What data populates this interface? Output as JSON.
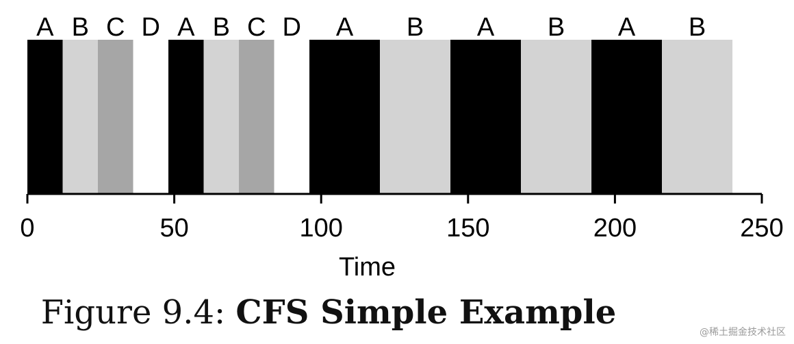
{
  "chart_data": {
    "type": "bar",
    "xlabel": "Time",
    "ylabel": "",
    "xlim": [
      0,
      250
    ],
    "xticks": [
      0,
      50,
      100,
      150,
      200,
      250
    ],
    "grid": false,
    "series": [
      {
        "name": "A",
        "color": "#000000"
      },
      {
        "name": "B",
        "color": "#d3d3d3"
      },
      {
        "name": "C",
        "color": "#a6a6a6"
      },
      {
        "name": "D",
        "color": "#ffffff"
      }
    ],
    "segments": [
      {
        "label": "A",
        "start": 0,
        "end": 12
      },
      {
        "label": "B",
        "start": 12,
        "end": 24
      },
      {
        "label": "C",
        "start": 24,
        "end": 36
      },
      {
        "label": "D",
        "start": 36,
        "end": 48
      },
      {
        "label": "A",
        "start": 48,
        "end": 60
      },
      {
        "label": "B",
        "start": 60,
        "end": 72
      },
      {
        "label": "C",
        "start": 72,
        "end": 84
      },
      {
        "label": "D",
        "start": 84,
        "end": 96
      },
      {
        "label": "A",
        "start": 96,
        "end": 120
      },
      {
        "label": "B",
        "start": 120,
        "end": 144
      },
      {
        "label": "A",
        "start": 144,
        "end": 168
      },
      {
        "label": "B",
        "start": 168,
        "end": 192
      },
      {
        "label": "A",
        "start": 192,
        "end": 216
      },
      {
        "label": "B",
        "start": 216,
        "end": 240
      }
    ]
  },
  "caption": {
    "prefix": "Figure 9.4: ",
    "title": "CFS Simple Example"
  },
  "watermark": "@稀土掘金技术社区"
}
